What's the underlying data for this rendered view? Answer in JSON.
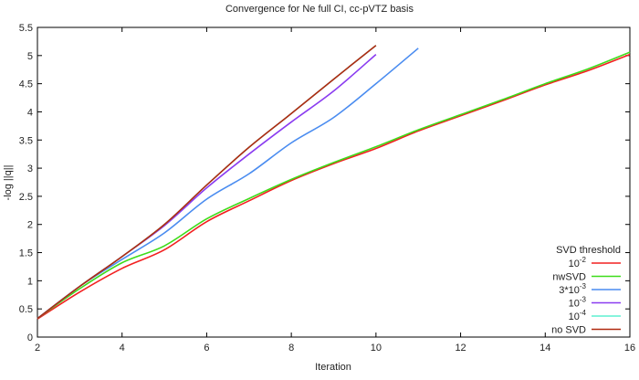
{
  "chart_data": {
    "type": "line",
    "title": "Convergence for Ne full CI, cc-pVTZ basis",
    "xlabel": "Iteration",
    "ylabel": "-log ||q||",
    "xlim": [
      2,
      16
    ],
    "ylim": [
      0,
      5.5
    ],
    "xticks": [
      2,
      4,
      6,
      8,
      10,
      12,
      14,
      16
    ],
    "yticks": [
      0,
      0.5,
      1,
      1.5,
      2,
      2.5,
      3,
      3.5,
      4,
      4.5,
      5,
      5.5
    ],
    "grid": false,
    "legend_title": "SVD threshold",
    "legend_placement": "bottom-right",
    "series": [
      {
        "name": "10^-2",
        "label_base": "10",
        "label_exp": "-2",
        "color": "#f22020",
        "x": [
          2,
          3,
          4,
          5,
          6,
          7,
          8,
          9,
          10,
          11,
          12,
          13,
          14,
          15,
          16
        ],
        "y": [
          0.32,
          0.8,
          1.22,
          1.55,
          2.05,
          2.42,
          2.78,
          3.08,
          3.35,
          3.66,
          3.93,
          4.2,
          4.48,
          4.73,
          5.02
        ]
      },
      {
        "name": "nwSVD",
        "label_base": "nwSVD",
        "label_exp": "",
        "color": "#3ddc1a",
        "x": [
          2,
          3,
          4,
          5,
          6,
          7,
          8,
          9,
          10,
          11,
          12,
          13,
          14,
          15,
          16
        ],
        "y": [
          0.33,
          0.86,
          1.32,
          1.62,
          2.1,
          2.46,
          2.8,
          3.1,
          3.38,
          3.68,
          3.95,
          4.22,
          4.5,
          4.76,
          5.06
        ]
      },
      {
        "name": "3*10^-3",
        "label_base": "3*10",
        "label_exp": "-3",
        "color": "#4a8cf0",
        "x": [
          2,
          3,
          4,
          5,
          6,
          7,
          8,
          9,
          10,
          11
        ],
        "y": [
          0.33,
          0.9,
          1.38,
          1.85,
          2.45,
          2.9,
          3.45,
          3.9,
          4.5,
          5.13
        ]
      },
      {
        "name": "10^-3",
        "label_base": "10",
        "label_exp": "-3",
        "color": "#8a3cf0",
        "x": [
          2,
          3,
          4,
          5,
          6,
          7,
          8,
          9,
          10
        ],
        "y": [
          0.33,
          0.9,
          1.43,
          1.98,
          2.65,
          3.25,
          3.82,
          4.37,
          5.02
        ]
      },
      {
        "name": "10^-4",
        "label_base": "10",
        "label_exp": "-4",
        "color": "#5ef0d0",
        "x": [
          2,
          3,
          4,
          5,
          6,
          7,
          8,
          9,
          10
        ],
        "y": [
          0.33,
          0.9,
          1.43,
          2.0,
          2.7,
          3.37,
          3.97,
          4.58,
          5.18
        ]
      },
      {
        "name": "no SVD",
        "label_base": "no SVD",
        "label_exp": "",
        "color": "#b02a10",
        "x": [
          2,
          3,
          4,
          5,
          6,
          7,
          8,
          9,
          10
        ],
        "y": [
          0.33,
          0.9,
          1.43,
          2.0,
          2.7,
          3.37,
          3.97,
          4.58,
          5.18
        ]
      }
    ]
  }
}
